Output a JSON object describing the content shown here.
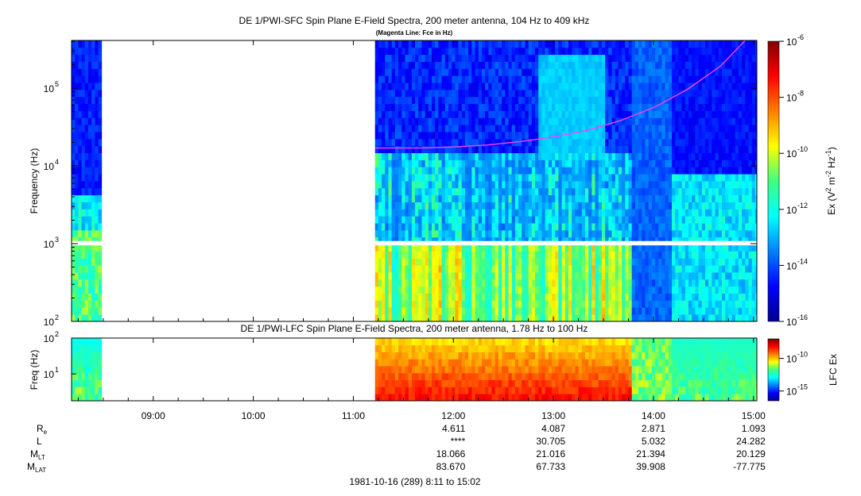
{
  "chart_data": [
    {
      "type": "heatmap",
      "title": "DE 1/PWI-SFC  Spin Plane E-Field Spectra, 200 meter antenna, 104 Hz to 409 kHz",
      "subtitle": "(Magenta Line: Fce in Hz)",
      "xlabel": "",
      "ylabel": "Frequency (Hz)",
      "yscale": "log",
      "ylim": [
        100,
        409000
      ],
      "xlim": [
        "08:11",
        "15:02"
      ],
      "yticks": [
        {
          "label": "10",
          "exp": "2",
          "value": 100
        },
        {
          "label": "10",
          "exp": "3",
          "value": 1000
        },
        {
          "label": "10",
          "exp": "4",
          "value": 10000
        },
        {
          "label": "10",
          "exp": "5",
          "value": 100000
        }
      ],
      "colorbar": {
        "label": "Ex (V² m⁻² Hz⁻¹)",
        "label_parts": [
          "Ex (V",
          "2",
          " m",
          "-2",
          " Hz",
          "-1",
          ")"
        ],
        "scale": "log",
        "range": [
          1e-16,
          1e-06
        ],
        "ticks": [
          {
            "label": "10",
            "exp": "-6",
            "value": 1e-06
          },
          {
            "label": "10",
            "exp": "-8",
            "value": 1e-08
          },
          {
            "label": "10",
            "exp": "-10",
            "value": 1e-10
          },
          {
            "label": "10",
            "exp": "-12",
            "value": 1e-12
          },
          {
            "label": "10",
            "exp": "-14",
            "value": 1e-14
          },
          {
            "label": "10",
            "exp": "-16",
            "value": 1e-16
          }
        ]
      },
      "data_gaps": [
        {
          "from": "08:29",
          "to": "11:13"
        }
      ],
      "magenta_line_fce": {
        "x": [
          "11:13",
          "11:40",
          "12:00",
          "12:20",
          "12:40",
          "13:00",
          "13:20",
          "13:40",
          "14:00",
          "14:20",
          "14:40",
          "14:55"
        ],
        "y": [
          17000,
          17000,
          17500,
          18500,
          20500,
          23500,
          28500,
          38000,
          56000,
          95000,
          190000,
          409000
        ]
      }
    },
    {
      "type": "heatmap",
      "title": "DE 1/PWI-LFC  Spin Plane E-Field Spectra, 200 meter antenna, 1.78 Hz to 100 Hz",
      "ylabel": "Freq (Hz)",
      "yscale": "log",
      "ylim": [
        1.78,
        100
      ],
      "xlim": [
        "08:11",
        "15:02"
      ],
      "yticks": [
        {
          "label": "10",
          "exp": "1",
          "value": 10
        },
        {
          "label": "10",
          "exp": "2",
          "value": 100
        }
      ],
      "colorbar": {
        "label": "LFC Ex",
        "scale": "log",
        "ticks": [
          {
            "label": "10",
            "exp": "-10",
            "value": 1e-10
          },
          {
            "label": "10",
            "exp": "-15",
            "value": 1e-15
          }
        ]
      },
      "data_gaps": [
        {
          "from": "08:29",
          "to": "11:13"
        }
      ]
    }
  ],
  "xaxis": {
    "ticks": [
      "09:00",
      "10:00",
      "11:00",
      "12:00",
      "13:00",
      "14:00",
      "15:00"
    ]
  },
  "ephemeris": {
    "rows": [
      {
        "label": "R",
        "sub": "e",
        "values": [
          "4.611",
          "4.087",
          "2.871",
          "1.093"
        ]
      },
      {
        "label": "L",
        "sub": "",
        "values": [
          "****",
          "30.705",
          "5.032",
          "24.282"
        ]
      },
      {
        "label": "M",
        "sub": "LT",
        "values": [
          "18.066",
          "21.016",
          "21.394",
          "20.129"
        ]
      },
      {
        "label": "M",
        "sub": "LAT",
        "values": [
          "83.670",
          "67.733",
          "39.908",
          "-77.775"
        ]
      }
    ],
    "times": [
      "12:00",
      "13:00",
      "14:00",
      "15:00"
    ]
  },
  "footer": "1981-10-16 (289) 8:11 to 15:02"
}
